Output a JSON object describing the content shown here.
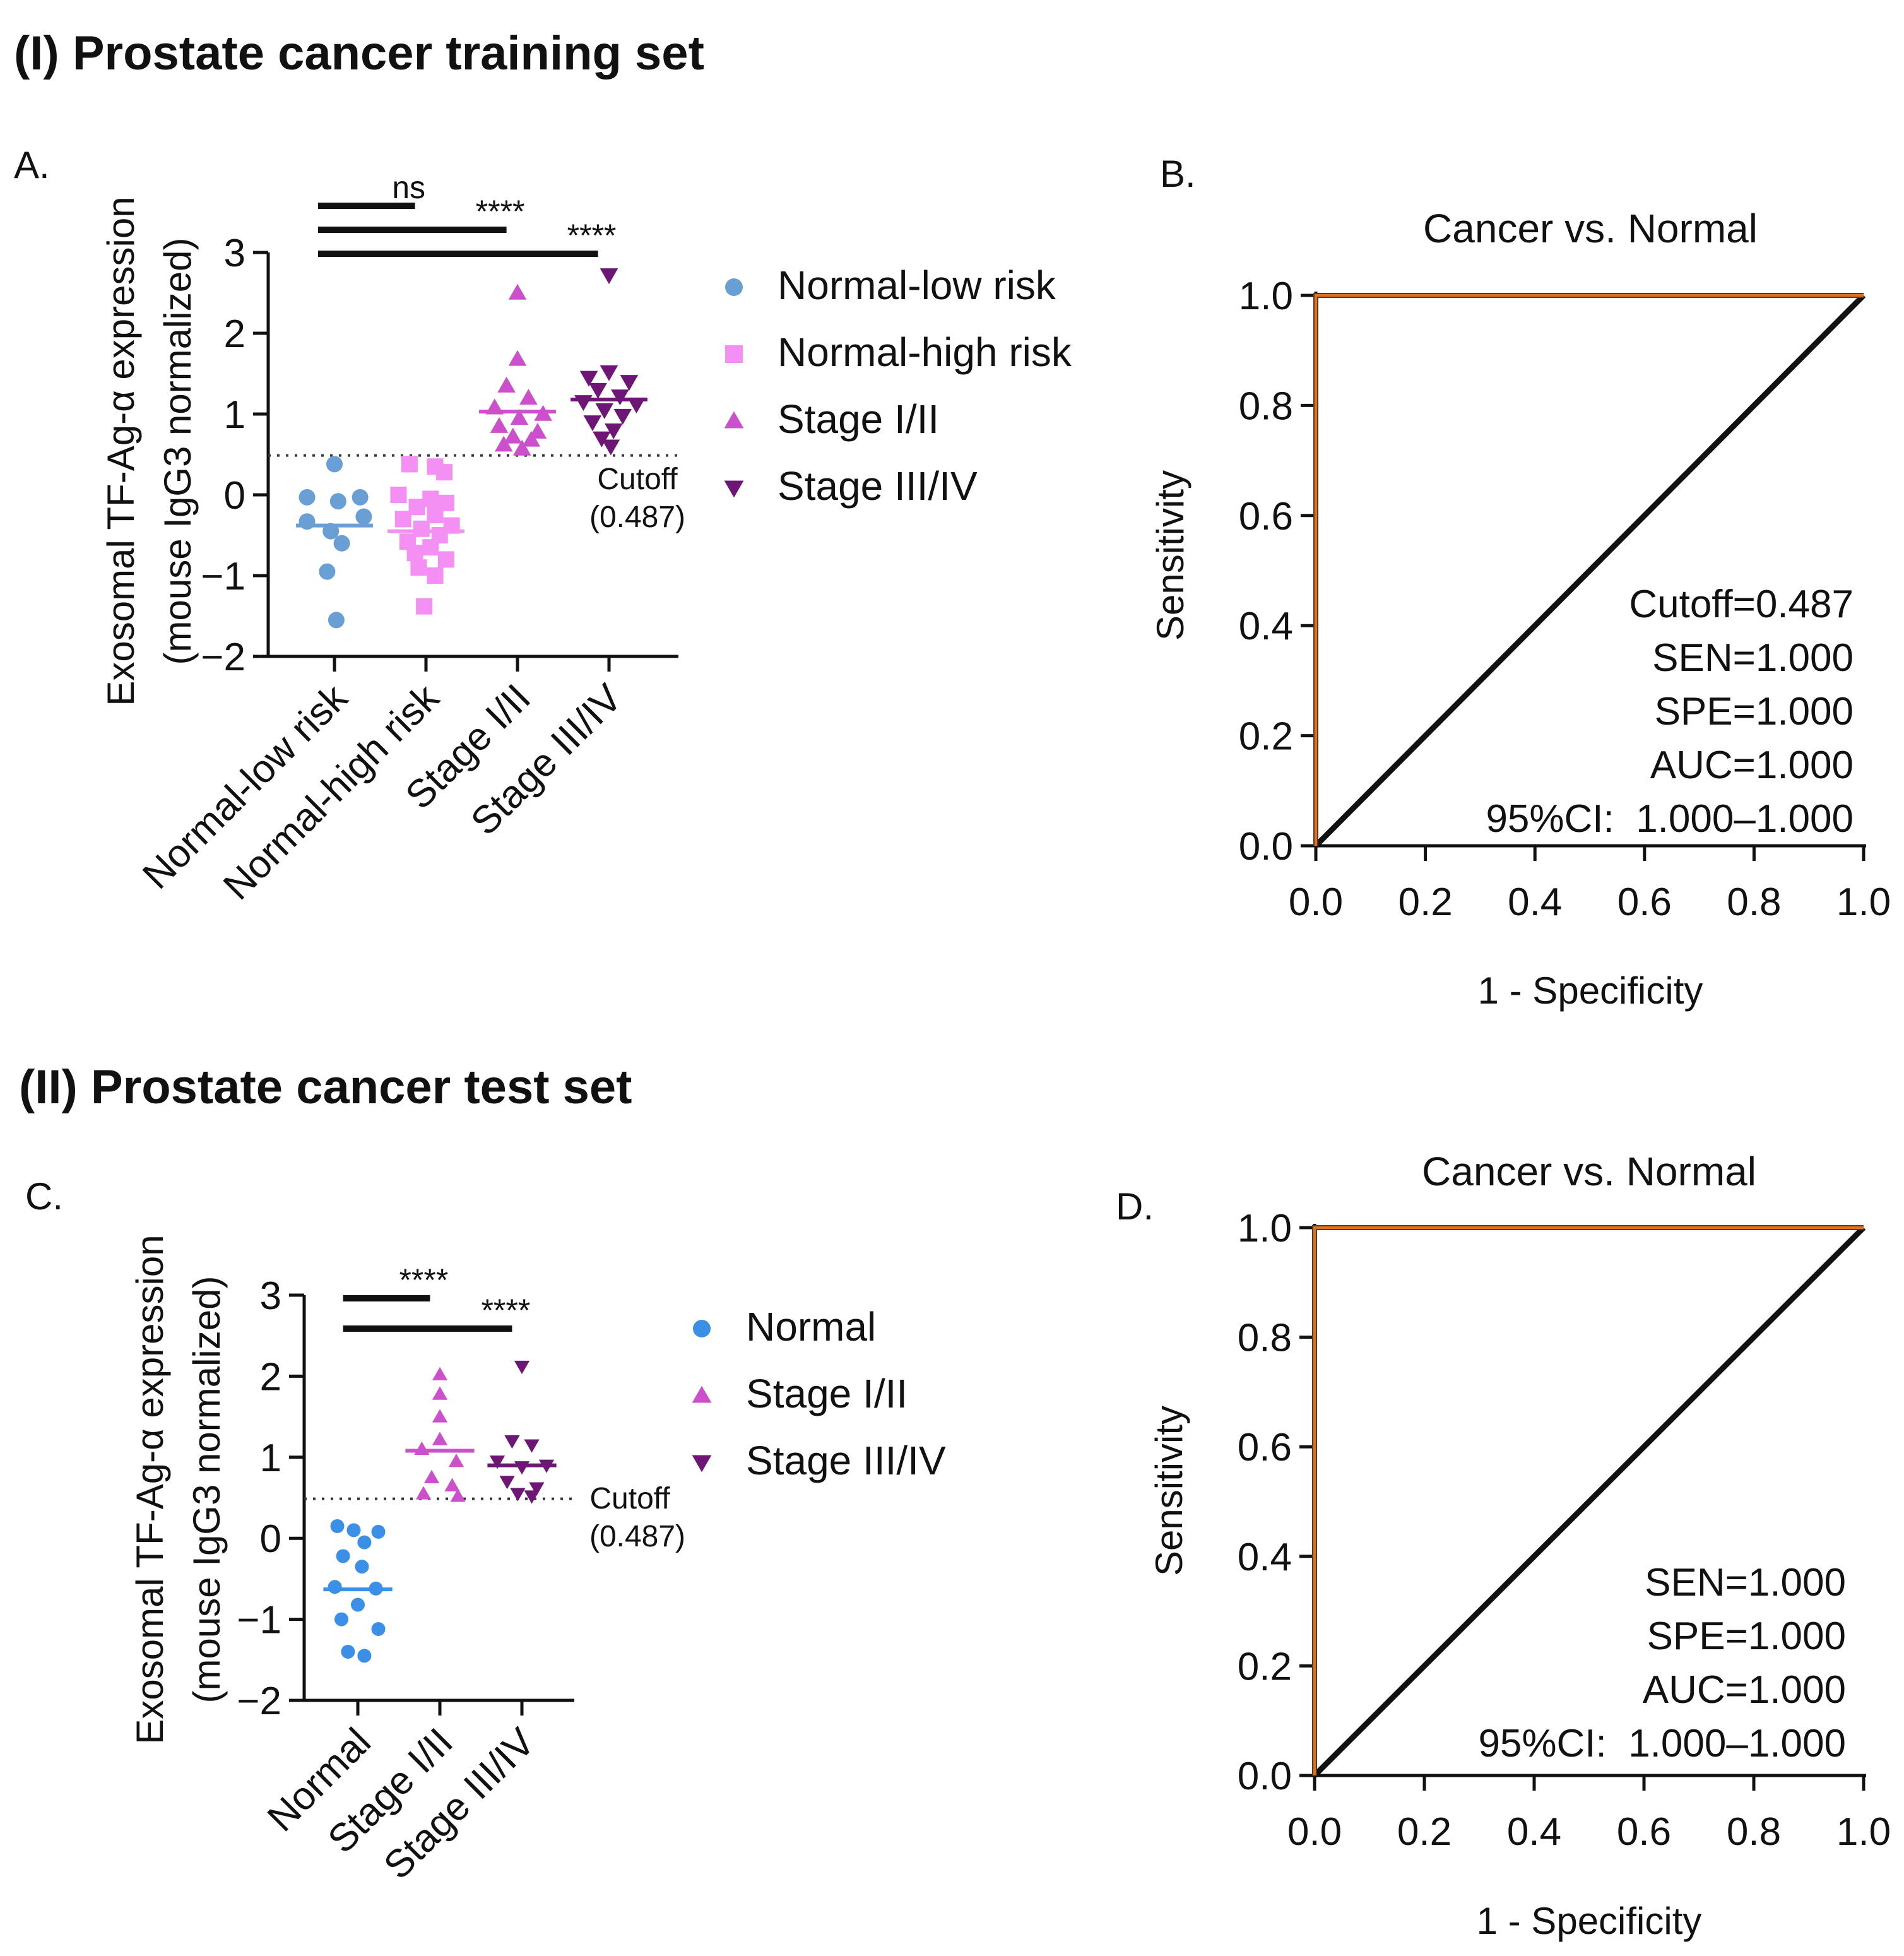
{
  "figure": {
    "section1_title": "(I) Prostate cancer training set",
    "section2_title": "(II) Prostate cancer test set"
  },
  "colors": {
    "normal_low": "#6a9fd6",
    "normal_high": "#f48ff4",
    "normal_test": "#3b8fe6",
    "stage12": "#cc4fcc",
    "stage34": "#6e1675",
    "roc_curve": "#e2711d",
    "reference_line": "#111111"
  },
  "chart_data": [
    {
      "id": "A",
      "panel_letter": "A.",
      "type": "scatter",
      "ylabel_line1": "Exosomal TF-Ag-α expression",
      "ylabel_line2": "(mouse IgG3 normalized)",
      "ylim": [
        -2,
        3
      ],
      "yticks": [
        "3",
        "2",
        "1",
        "0",
        "−1",
        "−2"
      ],
      "cutoff": 0.487,
      "cutoff_label_line1": "Cutoff",
      "cutoff_label_line2": "(0.487)",
      "categories": [
        "Normal-low risk",
        "Normal-high risk",
        "Stage I/II",
        "Stage III/IV"
      ],
      "series": [
        {
          "name": "Normal-low risk",
          "marker": "circle",
          "color": "#6a9fd6",
          "median": -0.38,
          "points": [
            [
              0,
              0.38
            ],
            [
              -0.3,
              -0.03
            ],
            [
              0.28,
              -0.03
            ],
            [
              0.04,
              -0.08
            ],
            [
              0.32,
              -0.27
            ],
            [
              -0.3,
              -0.33
            ],
            [
              -0.04,
              -0.45
            ],
            [
              0.08,
              -0.6
            ],
            [
              -0.08,
              -0.95
            ],
            [
              0.02,
              -1.55
            ]
          ]
        },
        {
          "name": "Normal-high risk",
          "marker": "square",
          "color": "#f48ff4",
          "median": -0.45,
          "points": [
            [
              -0.18,
              0.38
            ],
            [
              0.1,
              0.35
            ],
            [
              0.2,
              0.28
            ],
            [
              -0.3,
              0.0
            ],
            [
              0.05,
              -0.05
            ],
            [
              0.22,
              -0.1
            ],
            [
              -0.1,
              -0.15
            ],
            [
              0.1,
              -0.25
            ],
            [
              -0.25,
              -0.3
            ],
            [
              0.28,
              -0.38
            ],
            [
              -0.05,
              -0.42
            ],
            [
              0.15,
              -0.5
            ],
            [
              -0.2,
              -0.58
            ],
            [
              0.05,
              -0.65
            ],
            [
              -0.12,
              -0.72
            ],
            [
              0.22,
              -0.8
            ],
            [
              -0.08,
              -0.9
            ],
            [
              0.1,
              -1.0
            ],
            [
              -0.02,
              -1.38
            ]
          ]
        },
        {
          "name": "Stage I/II",
          "marker": "triangle-up",
          "color": "#cc4fcc",
          "median": 1.03,
          "points": [
            [
              0.0,
              2.5
            ],
            [
              0.0,
              1.68
            ],
            [
              -0.12,
              1.35
            ],
            [
              0.12,
              1.2
            ],
            [
              -0.25,
              1.08
            ],
            [
              0.28,
              1.0
            ],
            [
              0.02,
              0.95
            ],
            [
              -0.2,
              0.85
            ],
            [
              0.22,
              0.78
            ],
            [
              -0.05,
              0.72
            ],
            [
              0.15,
              0.68
            ],
            [
              -0.15,
              0.62
            ],
            [
              0.05,
              0.57
            ]
          ]
        },
        {
          "name": "Stage III/IV",
          "marker": "triangle-down",
          "color": "#6e1675",
          "median": 1.18,
          "points": [
            [
              0.0,
              2.72
            ],
            [
              0.0,
              1.52
            ],
            [
              -0.22,
              1.45
            ],
            [
              0.22,
              1.4
            ],
            [
              -0.12,
              1.3
            ],
            [
              0.12,
              1.22
            ],
            [
              -0.28,
              1.15
            ],
            [
              0.3,
              1.12
            ],
            [
              -0.05,
              1.05
            ],
            [
              0.15,
              0.98
            ],
            [
              -0.18,
              0.9
            ],
            [
              0.05,
              0.8
            ],
            [
              -0.08,
              0.7
            ],
            [
              0.02,
              0.6
            ]
          ]
        }
      ],
      "significance": [
        {
          "label": "ns",
          "from": 0,
          "to": 1
        },
        {
          "label": "****",
          "from": 0,
          "to": 2
        },
        {
          "label": "****",
          "from": 0,
          "to": 3
        }
      ]
    },
    {
      "id": "B",
      "panel_letter": "B.",
      "type": "line",
      "title": "Cancer vs. Normal",
      "xlabel": "1 - Specificity",
      "ylabel": "Sensitivity",
      "xlim": [
        0,
        1
      ],
      "ylim": [
        0,
        1
      ],
      "ticks": [
        "0.0",
        "0.2",
        "0.4",
        "0.6",
        "0.8",
        "1.0"
      ],
      "stats": [
        "Cutoff=0.487",
        "SEN=1.000",
        "SPE=1.000",
        "AUC=1.000",
        "95%CI:  1.000–1.000"
      ],
      "roc_points": [
        [
          0,
          0
        ],
        [
          0,
          1
        ],
        [
          1,
          1
        ]
      ],
      "reference_points": [
        [
          0,
          0
        ],
        [
          1,
          1
        ]
      ]
    },
    {
      "id": "C",
      "panel_letter": "C.",
      "type": "scatter",
      "ylabel_line1": "Exosomal TF-Ag-α expression",
      "ylabel_line2": "(mouse IgG3 normalized)",
      "ylim": [
        -2,
        3
      ],
      "yticks": [
        "3",
        "2",
        "1",
        "0",
        "−1",
        "−2"
      ],
      "cutoff": 0.487,
      "cutoff_label_line1": "Cutoff",
      "cutoff_label_line2": "(0.487)",
      "categories": [
        "Normal",
        "Stage I/II",
        "Stage III/IV"
      ],
      "series": [
        {
          "name": "Normal",
          "marker": "circle",
          "color": "#3b8fe6",
          "median": -0.63,
          "points": [
            [
              -0.25,
              0.15
            ],
            [
              -0.05,
              0.1
            ],
            [
              0.25,
              0.08
            ],
            [
              0.08,
              -0.05
            ],
            [
              -0.18,
              -0.22
            ],
            [
              0.05,
              -0.35
            ],
            [
              -0.28,
              -0.6
            ],
            [
              0.22,
              -0.62
            ],
            [
              0.0,
              -0.82
            ],
            [
              -0.2,
              -1.0
            ],
            [
              0.25,
              -1.12
            ],
            [
              -0.12,
              -1.4
            ],
            [
              0.08,
              -1.45
            ]
          ]
        },
        {
          "name": "Stage I/II",
          "marker": "triangle-up",
          "color": "#cc4fcc",
          "median": 1.08,
          "points": [
            [
              0.0,
              2.02
            ],
            [
              0.0,
              1.78
            ],
            [
              0.0,
              1.5
            ],
            [
              0.0,
              1.22
            ],
            [
              -0.22,
              1.1
            ],
            [
              0.2,
              0.95
            ],
            [
              -0.1,
              0.75
            ],
            [
              0.15,
              0.65
            ],
            [
              -0.2,
              0.55
            ],
            [
              0.22,
              0.52
            ]
          ]
        },
        {
          "name": "Stage III/IV",
          "marker": "triangle-down",
          "color": "#6e1675",
          "median": 0.9,
          "points": [
            [
              0.0,
              2.12
            ],
            [
              -0.12,
              1.2
            ],
            [
              0.12,
              1.15
            ],
            [
              -0.3,
              0.95
            ],
            [
              0.3,
              0.9
            ],
            [
              0.0,
              0.88
            ],
            [
              -0.18,
              0.7
            ],
            [
              0.18,
              0.62
            ],
            [
              -0.05,
              0.55
            ],
            [
              0.12,
              0.52
            ]
          ]
        }
      ],
      "significance": [
        {
          "label": "****",
          "from": 0,
          "to": 1
        },
        {
          "label": "****",
          "from": 0,
          "to": 2
        }
      ]
    },
    {
      "id": "D",
      "panel_letter": "D.",
      "type": "line",
      "title": "Cancer vs. Normal",
      "xlabel": "1 - Specificity",
      "ylabel": "Sensitivity",
      "xlim": [
        0,
        1
      ],
      "ylim": [
        0,
        1
      ],
      "ticks": [
        "0.0",
        "0.2",
        "0.4",
        "0.6",
        "0.8",
        "1.0"
      ],
      "stats": [
        "SEN=1.000",
        "SPE=1.000",
        "AUC=1.000",
        "95%CI:  1.000–1.000"
      ],
      "roc_points": [
        [
          0,
          0
        ],
        [
          0,
          1
        ],
        [
          1,
          1
        ]
      ],
      "reference_points": [
        [
          0,
          0
        ],
        [
          1,
          1
        ]
      ]
    }
  ]
}
